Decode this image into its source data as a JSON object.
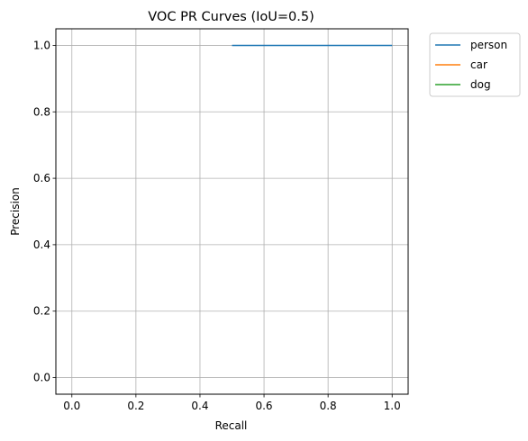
{
  "chart_data": {
    "type": "line",
    "title": "VOC PR Curves (IoU=0.5)",
    "xlabel": "Recall",
    "ylabel": "Precision",
    "xlim": [
      -0.05,
      1.05
    ],
    "ylim": [
      -0.05,
      1.05
    ],
    "xticks": [
      0.0,
      0.2,
      0.4,
      0.6,
      0.8,
      1.0
    ],
    "xtick_labels": [
      "0.0",
      "0.2",
      "0.4",
      "0.6",
      "0.8",
      "1.0"
    ],
    "yticks": [
      0.0,
      0.2,
      0.4,
      0.6,
      0.8,
      1.0
    ],
    "ytick_labels": [
      "0.0",
      "0.2",
      "0.4",
      "0.6",
      "0.8",
      "1.0"
    ],
    "grid": true,
    "legend_position": "outside-upper-right",
    "series": [
      {
        "name": "person",
        "color": "#1f77b4",
        "x": [
          0.5,
          1.0
        ],
        "y": [
          1.0,
          1.0
        ]
      },
      {
        "name": "car",
        "color": "#ff7f0e",
        "x": [],
        "y": []
      },
      {
        "name": "dog",
        "color": "#2ca02c",
        "x": [],
        "y": []
      }
    ]
  }
}
